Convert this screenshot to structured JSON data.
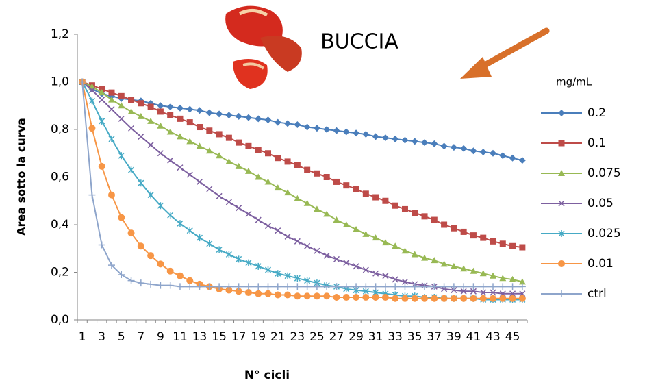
{
  "chart_data": {
    "type": "line",
    "title": "BUCCIA",
    "x_label": "N° cicli",
    "y_label": "Area sotto la curva",
    "legend_title": "mg/mL",
    "categories": [
      "1",
      null,
      "3",
      null,
      "5",
      null,
      "7",
      null,
      "9",
      null,
      "11",
      null,
      "13",
      null,
      "15",
      null,
      "17",
      null,
      "19",
      null,
      "21",
      null,
      "23",
      null,
      "25",
      null,
      "27",
      null,
      "29",
      null,
      "31",
      null,
      "33",
      null,
      "35",
      null,
      "37",
      null,
      "39",
      null,
      "41",
      null,
      "43",
      null,
      "45",
      null
    ],
    "ylim": [
      0,
      1.2
    ],
    "yticks": [
      {
        "value": 0,
        "label": "0,0"
      },
      {
        "value": 0.2,
        "label": "0,2"
      },
      {
        "value": 0.4,
        "label": "0,4"
      },
      {
        "value": 0.6,
        "label": "0,6"
      },
      {
        "value": 0.8,
        "label": "0,8"
      },
      {
        "value": 1,
        "label": "1,0"
      },
      {
        "value": 1.2,
        "label": "1,2"
      }
    ],
    "grid": false,
    "legend": "right",
    "series": [
      {
        "name": "0.2",
        "color": "#4a7ebb",
        "marker": "diamond",
        "values": [
          1.0,
          0.97,
          0.95,
          0.94,
          0.93,
          0.925,
          0.92,
          0.91,
          0.9,
          0.895,
          0.89,
          0.885,
          0.88,
          0.87,
          0.865,
          0.86,
          0.855,
          0.85,
          0.845,
          0.84,
          0.83,
          0.825,
          0.82,
          0.81,
          0.805,
          0.8,
          0.795,
          0.79,
          0.785,
          0.78,
          0.77,
          0.765,
          0.76,
          0.755,
          0.75,
          0.745,
          0.74,
          0.73,
          0.725,
          0.72,
          0.71,
          0.705,
          0.7,
          0.69,
          0.68,
          0.67
        ]
      },
      {
        "name": "0.1",
        "color": "#be4b48",
        "marker": "square",
        "values": [
          1.0,
          0.985,
          0.97,
          0.955,
          0.94,
          0.925,
          0.91,
          0.895,
          0.875,
          0.86,
          0.845,
          0.83,
          0.81,
          0.795,
          0.78,
          0.765,
          0.745,
          0.73,
          0.715,
          0.7,
          0.68,
          0.665,
          0.65,
          0.63,
          0.615,
          0.6,
          0.58,
          0.565,
          0.55,
          0.53,
          0.515,
          0.5,
          0.48,
          0.465,
          0.45,
          0.435,
          0.42,
          0.4,
          0.385,
          0.37,
          0.355,
          0.345,
          0.33,
          0.32,
          0.31,
          0.305
        ]
      },
      {
        "name": "0.075",
        "color": "#98b954",
        "marker": "triangle",
        "values": [
          1.0,
          0.98,
          0.955,
          0.925,
          0.9,
          0.875,
          0.855,
          0.835,
          0.815,
          0.79,
          0.77,
          0.75,
          0.73,
          0.71,
          0.69,
          0.665,
          0.645,
          0.625,
          0.6,
          0.58,
          0.555,
          0.535,
          0.51,
          0.49,
          0.465,
          0.445,
          0.42,
          0.4,
          0.38,
          0.36,
          0.345,
          0.325,
          0.31,
          0.29,
          0.275,
          0.26,
          0.25,
          0.235,
          0.225,
          0.215,
          0.205,
          0.195,
          0.185,
          0.175,
          0.17,
          0.16
        ]
      },
      {
        "name": "0.05",
        "color": "#7d60a0",
        "marker": "x",
        "values": [
          1.0,
          0.965,
          0.925,
          0.885,
          0.845,
          0.805,
          0.77,
          0.735,
          0.7,
          0.67,
          0.64,
          0.61,
          0.58,
          0.55,
          0.52,
          0.495,
          0.47,
          0.445,
          0.42,
          0.395,
          0.375,
          0.35,
          0.33,
          0.31,
          0.29,
          0.27,
          0.255,
          0.24,
          0.225,
          0.21,
          0.195,
          0.185,
          0.17,
          0.16,
          0.15,
          0.145,
          0.14,
          0.13,
          0.125,
          0.12,
          0.12,
          0.115,
          0.115,
          0.11,
          0.11,
          0.11
        ]
      },
      {
        "name": "0.025",
        "color": "#46aac5",
        "marker": "star",
        "values": [
          1.0,
          0.92,
          0.835,
          0.76,
          0.69,
          0.63,
          0.575,
          0.525,
          0.48,
          0.44,
          0.405,
          0.375,
          0.345,
          0.32,
          0.295,
          0.275,
          0.255,
          0.24,
          0.225,
          0.21,
          0.195,
          0.185,
          0.175,
          0.165,
          0.155,
          0.145,
          0.14,
          0.13,
          0.125,
          0.12,
          0.115,
          0.11,
          0.105,
          0.1,
          0.1,
          0.095,
          0.095,
          0.09,
          0.09,
          0.09,
          0.09,
          0.085,
          0.085,
          0.085,
          0.085,
          0.085
        ]
      },
      {
        "name": "0.01",
        "color": "#f79646",
        "marker": "circle",
        "values": [
          1.0,
          0.805,
          0.645,
          0.525,
          0.43,
          0.365,
          0.31,
          0.27,
          0.235,
          0.205,
          0.185,
          0.165,
          0.15,
          0.14,
          0.13,
          0.125,
          0.12,
          0.115,
          0.11,
          0.11,
          0.105,
          0.105,
          0.1,
          0.1,
          0.1,
          0.1,
          0.095,
          0.095,
          0.095,
          0.095,
          0.095,
          0.095,
          0.09,
          0.09,
          0.09,
          0.09,
          0.09,
          0.09,
          0.09,
          0.09,
          0.09,
          0.09,
          0.09,
          0.09,
          0.09,
          0.09
        ]
      },
      {
        "name": "ctrl",
        "color": "#8ea5cb",
        "marker": "plus",
        "values": [
          1.0,
          0.525,
          0.315,
          0.23,
          0.19,
          0.165,
          0.155,
          0.15,
          0.145,
          0.145,
          0.14,
          0.14,
          0.14,
          0.14,
          0.14,
          0.14,
          0.14,
          0.14,
          0.14,
          0.14,
          0.14,
          0.14,
          0.14,
          0.14,
          0.14,
          0.14,
          0.14,
          0.14,
          0.14,
          0.14,
          0.14,
          0.14,
          0.14,
          0.14,
          0.14,
          0.14,
          0.14,
          0.14,
          0.14,
          0.14,
          0.14,
          0.14,
          0.14,
          0.14,
          0.14,
          0.14
        ]
      }
    ]
  }
}
